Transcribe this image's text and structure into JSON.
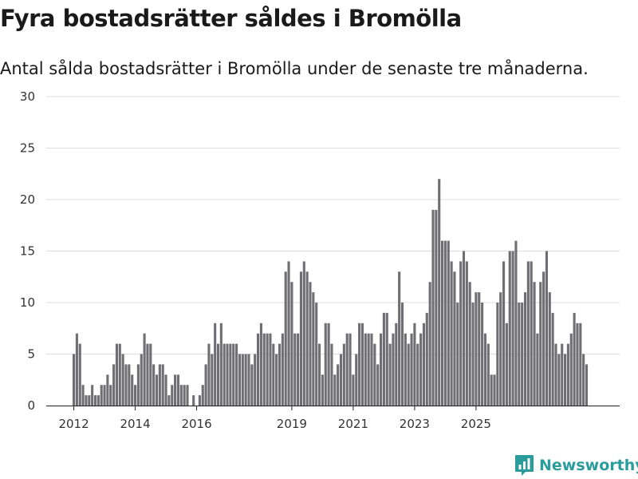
{
  "title": "Fyra bostadsrätter såldes i Bromölla",
  "subtitle": "Antal sålda bostadsrätter i Bromölla under de senaste tre månaderna.",
  "brand": {
    "name": "Newsworthy",
    "color": "#2a9c9c",
    "icon": "newsworthy-logo-icon"
  },
  "chart_data": {
    "type": "bar",
    "title": "Fyra bostadsrätter såldes i Bromölla",
    "xlabel": "",
    "ylabel": "",
    "ylim": [
      0,
      30
    ],
    "yticks": [
      0,
      5,
      10,
      15,
      20,
      25,
      30
    ],
    "grid": true,
    "bar_color": "#6e6e73",
    "highlight_color": "#22948f",
    "x_tick_labels": [
      {
        "label": "2012",
        "index": 0
      },
      {
        "label": "2014",
        "index": 20
      },
      {
        "label": "2016",
        "index": 40
      },
      {
        "label": "2019",
        "index": 71
      },
      {
        "label": "2021",
        "index": 91
      },
      {
        "label": "2023",
        "index": 111
      },
      {
        "label": "2025",
        "index": 131
      }
    ],
    "values": [
      5,
      7,
      6,
      2,
      1,
      1,
      2,
      1,
      1,
      2,
      2,
      3,
      2,
      4,
      6,
      6,
      5,
      4,
      4,
      3,
      2,
      4,
      5,
      7,
      6,
      6,
      4,
      3,
      4,
      4,
      3,
      1,
      2,
      3,
      3,
      2,
      2,
      2,
      0,
      1,
      0,
      1,
      2,
      4,
      6,
      5,
      8,
      6,
      8,
      6,
      6,
      6,
      6,
      6,
      5,
      5,
      5,
      5,
      4,
      5,
      7,
      8,
      7,
      7,
      7,
      6,
      5,
      6,
      7,
      13,
      14,
      12,
      7,
      7,
      13,
      14,
      13,
      12,
      11,
      10,
      6,
      3,
      8,
      8,
      6,
      3,
      4,
      5,
      6,
      7,
      7,
      3,
      5,
      8,
      8,
      7,
      7,
      7,
      6,
      4,
      7,
      9,
      9,
      6,
      7,
      8,
      13,
      10,
      7,
      6,
      7,
      8,
      6,
      7,
      8,
      9,
      12,
      19,
      19,
      22,
      16,
      16,
      16,
      14,
      13,
      10,
      14,
      15,
      14,
      12,
      10,
      11,
      11,
      10,
      7,
      6,
      3,
      3,
      10,
      11,
      14,
      8,
      15,
      15,
      16,
      10,
      10,
      11,
      14,
      14,
      12,
      7,
      12,
      13,
      15,
      11,
      9,
      6,
      5,
      6,
      5,
      6,
      7,
      9,
      8,
      8,
      5,
      4
    ],
    "highlight_index": 171,
    "annotations": [
      {
        "index": 171,
        "text": "4"
      }
    ]
  }
}
